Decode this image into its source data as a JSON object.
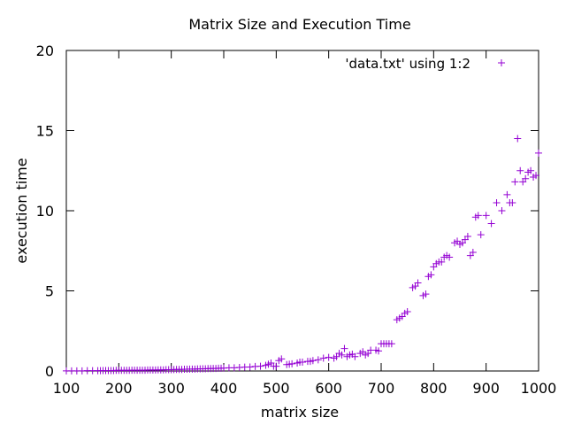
{
  "chart_data": {
    "type": "scatter",
    "title": "Matrix Size and Execution Time",
    "xlabel": "matrix size",
    "ylabel": "execution time",
    "xlim": [
      100,
      1000
    ],
    "ylim": [
      0,
      20
    ],
    "xticks": [
      100,
      200,
      300,
      400,
      500,
      600,
      700,
      800,
      900,
      1000
    ],
    "yticks": [
      0,
      5,
      10,
      15,
      20
    ],
    "grid": false,
    "legend_position": "top-right",
    "marker": "+",
    "color": "#9400d3",
    "series": [
      {
        "name": "'data.txt' using 1:2",
        "x": [
          100,
          110,
          120,
          130,
          140,
          150,
          160,
          165,
          170,
          175,
          180,
          185,
          190,
          195,
          200,
          205,
          210,
          215,
          220,
          225,
          230,
          235,
          240,
          245,
          250,
          255,
          260,
          265,
          270,
          275,
          280,
          285,
          290,
          295,
          300,
          305,
          310,
          315,
          320,
          325,
          330,
          335,
          340,
          345,
          350,
          355,
          360,
          365,
          370,
          375,
          380,
          385,
          390,
          395,
          400,
          410,
          420,
          430,
          440,
          450,
          460,
          470,
          480,
          485,
          490,
          495,
          500,
          505,
          510,
          520,
          525,
          530,
          540,
          545,
          550,
          560,
          565,
          570,
          580,
          590,
          600,
          610,
          615,
          620,
          625,
          630,
          635,
          640,
          645,
          650,
          660,
          665,
          670,
          675,
          680,
          690,
          695,
          700,
          705,
          710,
          715,
          720,
          730,
          735,
          740,
          745,
          750,
          760,
          765,
          770,
          780,
          785,
          790,
          795,
          800,
          805,
          810,
          815,
          820,
          825,
          830,
          840,
          845,
          850,
          855,
          860,
          865,
          870,
          875,
          880,
          885,
          890,
          900,
          910,
          920,
          930,
          940,
          945,
          950,
          955,
          960,
          965,
          970,
          975,
          980,
          985,
          990,
          995,
          1000
        ],
        "y": [
          0.01,
          0.01,
          0.01,
          0.01,
          0.02,
          0.02,
          0.02,
          0.02,
          0.03,
          0.03,
          0.03,
          0.03,
          0.03,
          0.04,
          0.04,
          0.04,
          0.04,
          0.04,
          0.04,
          0.05,
          0.05,
          0.05,
          0.05,
          0.05,
          0.05,
          0.06,
          0.06,
          0.06,
          0.06,
          0.07,
          0.07,
          0.07,
          0.08,
          0.08,
          0.08,
          0.09,
          0.1,
          0.1,
          0.1,
          0.11,
          0.11,
          0.12,
          0.12,
          0.12,
          0.13,
          0.13,
          0.14,
          0.14,
          0.15,
          0.15,
          0.16,
          0.16,
          0.17,
          0.17,
          0.18,
          0.2,
          0.2,
          0.22,
          0.24,
          0.25,
          0.28,
          0.3,
          0.35,
          0.42,
          0.5,
          0.3,
          0.3,
          0.65,
          0.75,
          0.4,
          0.42,
          0.45,
          0.5,
          0.55,
          0.55,
          0.6,
          0.6,
          0.65,
          0.7,
          0.8,
          0.85,
          0.8,
          0.9,
          1.1,
          1.0,
          1.4,
          0.9,
          1.0,
          1.05,
          0.9,
          1.1,
          1.2,
          1.0,
          1.1,
          1.3,
          1.3,
          1.25,
          1.7,
          1.7,
          1.7,
          1.7,
          1.7,
          3.2,
          3.3,
          3.4,
          3.6,
          3.7,
          5.2,
          5.3,
          5.5,
          4.7,
          4.8,
          5.9,
          6.0,
          6.5,
          6.7,
          6.8,
          6.8,
          7.1,
          7.2,
          7.1,
          8.0,
          8.1,
          7.9,
          8.0,
          8.2,
          8.4,
          7.2,
          7.4,
          9.6,
          9.7,
          8.5,
          9.7,
          9.2,
          10.5,
          10.0,
          11.0,
          10.5,
          10.5,
          11.8,
          14.5,
          12.5,
          11.8,
          12.0,
          12.4,
          12.5,
          12.1,
          12.2,
          13.6
        ]
      }
    ]
  }
}
